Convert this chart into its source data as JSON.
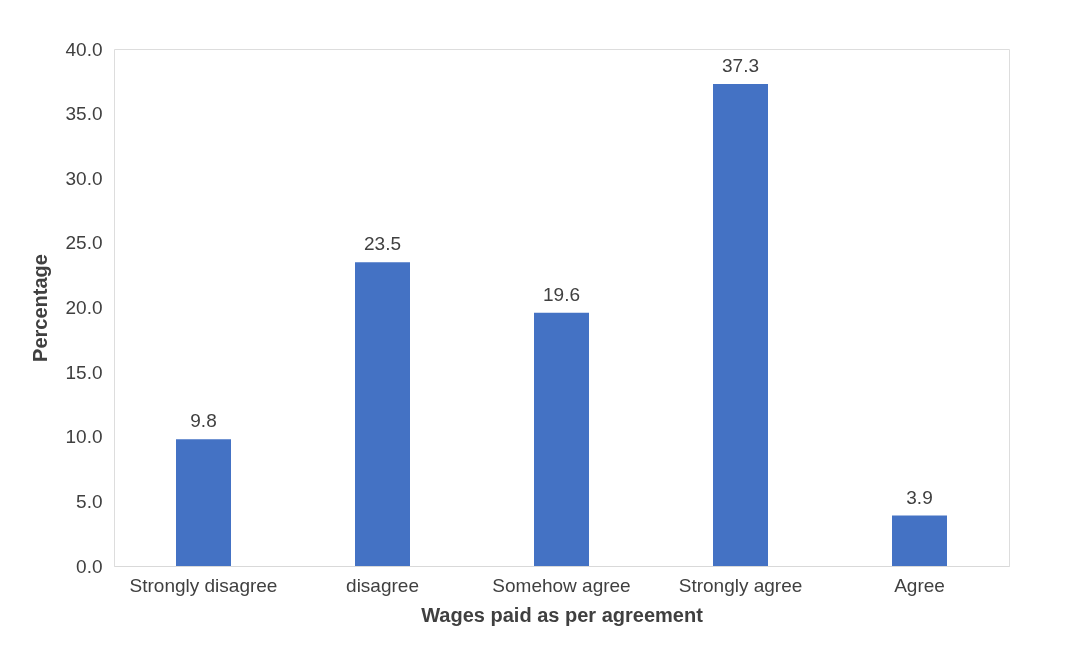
{
  "chart_data": {
    "type": "bar",
    "xlabel": "Wages paid as per agreement",
    "ylabel": "Percentage",
    "categories": [
      "Strongly disagree",
      "disagree",
      "Somehow agree",
      "Strongly agree",
      "Agree"
    ],
    "values": [
      9.8,
      23.5,
      19.6,
      37.3,
      3.9
    ],
    "color": "#4472c4",
    "ylim": [
      0,
      40
    ],
    "yticks": [
      {
        "value": 0,
        "label": "0.0"
      },
      {
        "value": 5,
        "label": "5.0"
      },
      {
        "value": 10,
        "label": "10.0"
      },
      {
        "value": 15,
        "label": "15.0"
      },
      {
        "value": 20,
        "label": "20.0"
      },
      {
        "value": 25,
        "label": "25.0"
      },
      {
        "value": 30,
        "label": "30.0"
      },
      {
        "value": 35,
        "label": "35.0"
      },
      {
        "value": 40,
        "label": "40.0"
      }
    ],
    "data_labels": true,
    "grid": false
  }
}
